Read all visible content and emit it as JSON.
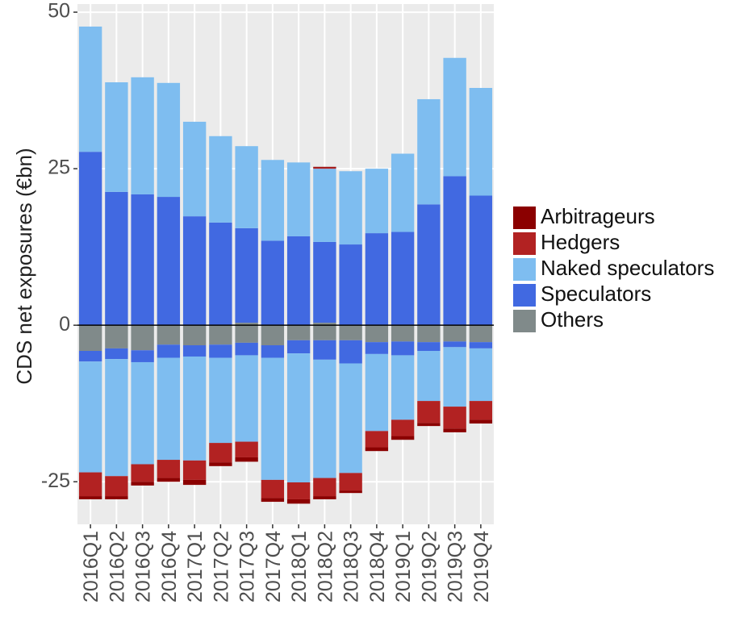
{
  "chart_data": {
    "type": "bar",
    "stacked": true,
    "y_label": "CDS net exposures (€bn)",
    "categories": [
      "2016Q1",
      "2016Q2",
      "2016Q3",
      "2016Q4",
      "2017Q1",
      "2017Q2",
      "2017Q3",
      "2017Q4",
      "2018Q1",
      "2018Q2",
      "2018Q3",
      "2018Q4",
      "2019Q1",
      "2019Q2",
      "2019Q3",
      "2019Q4"
    ],
    "ylim": [
      -31.8,
      51.3
    ],
    "yticks": [
      -25,
      0,
      25,
      50
    ],
    "grid": true,
    "legend": "right",
    "series": [
      {
        "name": "Arbitrageurs",
        "color": "#8b0000",
        "positive": [
          0,
          0,
          0,
          0,
          0,
          0,
          0,
          0,
          0,
          0.1,
          0,
          0,
          0,
          0,
          0,
          0
        ],
        "negative": [
          -0.5,
          -0.5,
          -0.6,
          -0.6,
          -0.8,
          -0.6,
          -0.7,
          -0.6,
          -0.7,
          -0.5,
          -0.4,
          -0.6,
          -0.6,
          -0.5,
          -0.6,
          -0.6
        ]
      },
      {
        "name": "Hedgers",
        "color": "#b22222",
        "positive": [
          0,
          0,
          0,
          0,
          0,
          0,
          0,
          0,
          0,
          0.2,
          0,
          0,
          0,
          0,
          0,
          0
        ],
        "negative": [
          -3.8,
          -3.2,
          -2.8,
          -2.9,
          -3.1,
          -3.1,
          -2.5,
          -2.9,
          -2.7,
          -2.9,
          -2.8,
          -2.6,
          -2.6,
          -3.5,
          -3.5,
          -3.0
        ]
      },
      {
        "name": "Naked speculators",
        "color": "#7ebdf0",
        "positive": [
          20.0,
          17.5,
          18.7,
          18.2,
          15.1,
          13.8,
          13.1,
          12.9,
          11.8,
          11.7,
          11.7,
          10.3,
          12.5,
          16.8,
          18.9,
          17.2
        ],
        "negative": [
          -17.7,
          -18.7,
          -16.3,
          -16.3,
          -16.6,
          -13.6,
          -13.8,
          -19.5,
          -20.6,
          -18.9,
          -17.5,
          -12.3,
          -10.3,
          -8.0,
          -9.5,
          -8.4
        ]
      },
      {
        "name": "Speculators",
        "color": "#4169e1",
        "positive": [
          27.7,
          21.3,
          20.9,
          20.5,
          17.4,
          16.4,
          15.1,
          13.5,
          14.2,
          12.9,
          12.9,
          14.7,
          14.9,
          19.3,
          23.8,
          20.7
        ],
        "negative": [
          -1.7,
          -1.7,
          -1.9,
          -2.1,
          -1.8,
          -2.1,
          -2.0,
          -2.0,
          -2.1,
          -3.1,
          -3.7,
          -1.9,
          -2.2,
          -1.4,
          -0.9,
          -1.0
        ]
      },
      {
        "name": "Others",
        "color": "#808a8a",
        "positive": [
          0,
          0,
          0,
          0,
          0,
          0,
          0.4,
          0,
          0,
          0.4,
          0,
          0,
          0,
          0,
          0,
          0
        ],
        "negative": [
          -4.1,
          -3.7,
          -4.0,
          -3.1,
          -3.2,
          -3.1,
          -2.8,
          -3.2,
          -2.4,
          -2.4,
          -2.4,
          -2.7,
          -2.6,
          -2.7,
          -2.6,
          -2.7
        ]
      }
    ]
  }
}
